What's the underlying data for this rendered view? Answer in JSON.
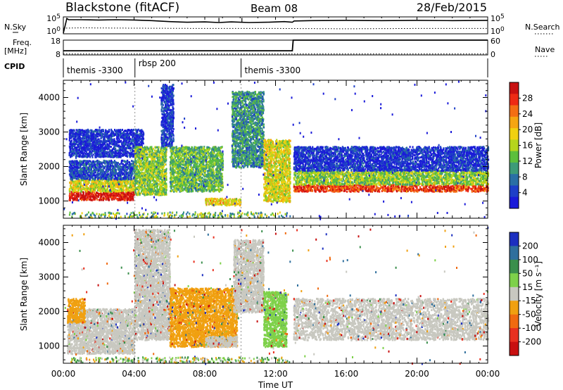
{
  "header": {
    "station": "Blackstone (fitACF)",
    "beam": "Beam 08",
    "date": "28/Feb/2015"
  },
  "chart_data": [
    {
      "type": "line",
      "name": "noise-panel",
      "left_label": "N.Sky",
      "right_label": "N.Search",
      "left_ticks": [
        "10^5",
        "10^0"
      ],
      "right_ticks": [
        "10^5",
        "10^0"
      ],
      "series": [
        {
          "name": "N.Sky",
          "style": "solid",
          "x": [
            0.0,
            0.2,
            0.3,
            1.0,
            2.0,
            3.0,
            4.0,
            5.0,
            6.0,
            7.0,
            8.0,
            8.8,
            9.5,
            10.5,
            11.5,
            12.5,
            12.95,
            13.05,
            14.0,
            16.0,
            18.0,
            20.0,
            22.0,
            24.0
          ],
          "y": [
            0.2,
            4.9,
            4.5,
            4.5,
            4.4,
            4.5,
            4.4,
            4.2,
            3.9,
            3.7,
            3.8,
            3.6,
            3.8,
            3.6,
            3.7,
            3.9,
            3.7,
            4.1,
            4.2,
            4.3,
            4.2,
            4.3,
            4.2,
            4.3
          ]
        },
        {
          "name": "N.Search",
          "style": "dotted",
          "x": [
            0.0,
            1.0,
            4.0,
            8.0,
            12.0,
            16.0,
            20.0,
            24.0
          ],
          "y": [
            1.8,
            1.9,
            1.8,
            1.7,
            1.7,
            1.6,
            1.7,
            1.7
          ]
        }
      ]
    },
    {
      "type": "line",
      "name": "frequency-panel",
      "left_label": "Freq.\n[MHz]",
      "right_label": "Nave",
      "left_ticks": [
        "18",
        "8"
      ],
      "right_ticks": [
        "60",
        "0"
      ],
      "series": [
        {
          "name": "Freq. [MHz]",
          "style": "solid",
          "x": [
            0,
            12.95,
            13.0,
            24
          ],
          "y": [
            10.8,
            10.8,
            18,
            18
          ]
        },
        {
          "name": "Nave",
          "style": "dotted",
          "x": [
            0,
            24
          ],
          "y": [
            1,
            1
          ]
        }
      ]
    },
    {
      "type": "table",
      "name": "cpid-panel",
      "label": "CPID",
      "segments": [
        {
          "start": 0.0,
          "end": 4.05,
          "text": "themis -3300"
        },
        {
          "start": 4.05,
          "end": 10.05,
          "text": "rbsp 200"
        },
        {
          "start": 10.05,
          "end": 24.0,
          "text": "themis -3300"
        }
      ]
    },
    {
      "type": "heatmap",
      "name": "power-panel",
      "ylabel": "Slant Range [km]",
      "xlim": [
        0,
        24
      ],
      "ylim": [
        500,
        4500
      ],
      "yticks": [
        1000,
        2000,
        3000,
        4000
      ],
      "colorbar": {
        "label": "Power [dB]",
        "ticks": [
          "28",
          "24",
          "20",
          "16",
          "12",
          "8",
          "4"
        ],
        "colors": [
          "#1a1ad9",
          "#1e3fc8",
          "#2a6fa5",
          "#3d9b78",
          "#5cbf3c",
          "#b5d51d",
          "#f0d010",
          "#f5a512",
          "#f36e14",
          "#ee2a14",
          "#c81010"
        ]
      },
      "regions": [
        {
          "t0": 0.3,
          "t1": 4.0,
          "r0": 1050,
          "r1": 1300,
          "level": 0.95
        },
        {
          "t0": 0.3,
          "t1": 4.0,
          "r0": 1300,
          "r1": 1650,
          "level": 0.55
        },
        {
          "t0": 0.3,
          "t1": 4.0,
          "r0": 1650,
          "r1": 2200,
          "level": 0.15
        },
        {
          "t0": 0.3,
          "t1": 4.5,
          "r0": 2300,
          "r1": 3100,
          "level": 0.08
        },
        {
          "t0": 4.0,
          "t1": 5.8,
          "r0": 1200,
          "r1": 2600,
          "level": 0.45
        },
        {
          "t0": 5.5,
          "t1": 6.2,
          "r0": 2600,
          "r1": 4400,
          "level": 0.12
        },
        {
          "t0": 6.0,
          "t1": 9.0,
          "r0": 1300,
          "r1": 2600,
          "level": 0.4
        },
        {
          "t0": 8.0,
          "t1": 10.0,
          "r0": 900,
          "r1": 1100,
          "level": 0.6
        },
        {
          "t0": 9.5,
          "t1": 11.3,
          "r0": 2000,
          "r1": 4200,
          "level": 0.3
        },
        {
          "t0": 11.3,
          "t1": 12.8,
          "r0": 1000,
          "r1": 2800,
          "level": 0.55
        },
        {
          "t0": 13.0,
          "t1": 24.0,
          "r0": 1300,
          "r1": 1500,
          "level": 0.85
        },
        {
          "t0": 13.0,
          "t1": 24.0,
          "r0": 1500,
          "r1": 1900,
          "level": 0.45
        },
        {
          "t0": 13.0,
          "t1": 24.0,
          "r0": 1900,
          "r1": 2600,
          "level": 0.1
        }
      ]
    },
    {
      "type": "heatmap",
      "name": "velocity-panel",
      "xlabel": "Time UT",
      "ylabel": "Slant Range [km]",
      "xlim": [
        0,
        24
      ],
      "ylim": [
        500,
        4500
      ],
      "xticks": [
        "00:00",
        "04:00",
        "08:00",
        "12:00",
        "16:00",
        "20:00",
        "00:00"
      ],
      "yticks": [
        1000,
        2000,
        3000,
        4000
      ],
      "colorbar": {
        "label": "Velocity [m s⁻¹]",
        "ticks": [
          "200",
          "100",
          "50",
          "15",
          "-15",
          "-50",
          "-100",
          "-200"
        ],
        "colors": [
          "#1c2fc0",
          "#2f6f9d",
          "#3b8f4c",
          "#7ed14a",
          "#c8c8c0",
          "#f0a010",
          "#f06a10",
          "#e83020",
          "#c81010"
        ]
      },
      "regions": [
        {
          "t0": 0.2,
          "t1": 4.0,
          "r0": 800,
          "r1": 2100,
          "color": "#c8c8c0"
        },
        {
          "t0": 0.2,
          "t1": 1.2,
          "r0": 1700,
          "r1": 2400,
          "color": "#f0a010"
        },
        {
          "t0": 4.0,
          "t1": 6.0,
          "r0": 1200,
          "r1": 4400,
          "color": "#c8c8c0"
        },
        {
          "t0": 6.0,
          "t1": 9.8,
          "r0": 1000,
          "r1": 2700,
          "color": "#f0a010"
        },
        {
          "t0": 8.0,
          "t1": 9.8,
          "r0": 1000,
          "r1": 1300,
          "color": "#c8c8c0"
        },
        {
          "t0": 9.6,
          "t1": 11.3,
          "r0": 2000,
          "r1": 4100,
          "color": "#c8c8c0"
        },
        {
          "t0": 11.3,
          "t1": 12.6,
          "r0": 1000,
          "r1": 2600,
          "color": "#7ed14a"
        },
        {
          "t0": 13.0,
          "t1": 24.0,
          "r0": 1200,
          "r1": 2400,
          "color": "#c8c8c0"
        }
      ]
    }
  ]
}
